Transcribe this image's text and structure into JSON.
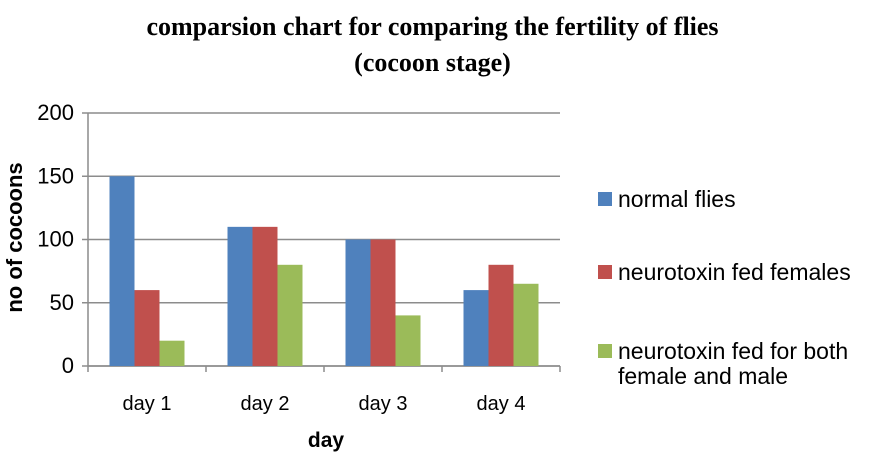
{
  "chart_data": {
    "type": "bar",
    "title_lines": [
      "comparsion chart for comparing the fertility of flies",
      "(cocoon stage)"
    ],
    "xlabel": "day",
    "ylabel": "no of cocoons",
    "categories": [
      "day 1",
      "day 2",
      "day 3",
      "day 4"
    ],
    "ylim": [
      0,
      200
    ],
    "yticks": [
      0,
      50,
      100,
      150,
      200
    ],
    "grid": true,
    "legend_position": "right",
    "series": [
      {
        "name": "normal flies",
        "color": "#4f81bd",
        "values": [
          150,
          110,
          100,
          60
        ]
      },
      {
        "name": "neurotoxin fed females",
        "color": "#c0504d",
        "values": [
          60,
          110,
          100,
          80
        ]
      },
      {
        "name": "neurotoxin fed for both female and male",
        "legend_lines": [
          "neurotoxin fed for both",
          "female and male"
        ],
        "color": "#9bbb59",
        "values": [
          20,
          80,
          40,
          65
        ]
      }
    ]
  }
}
